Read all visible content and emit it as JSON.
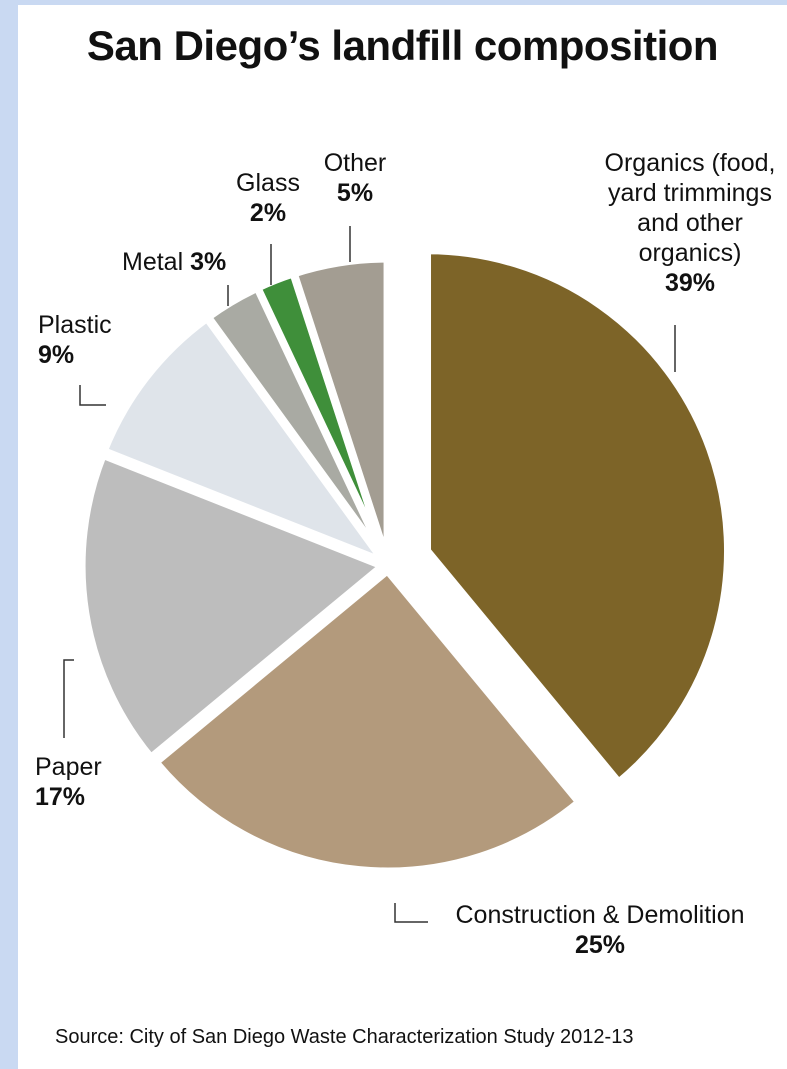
{
  "chart_data": {
    "type": "pie",
    "title": "San Diego’s landfill composition",
    "categories": [
      "Organics (food, yard trimmings and other organics)",
      "Construction & Demolition",
      "Paper",
      "Plastic",
      "Metal",
      "Glass",
      "Other"
    ],
    "values": [
      39,
      25,
      17,
      9,
      3,
      2,
      5
    ],
    "value_labels": [
      "39%",
      "25%",
      "17%",
      "9%",
      "3%",
      "2%",
      "5%"
    ],
    "colors": [
      "#7d6428",
      "#b39a7c",
      "#bdbdbd",
      "#dfe4ea",
      "#a9aaa3",
      "#3f8f3a",
      "#a39d92"
    ],
    "source": "Source: City of San Diego Waste Characterization Study 2012-13"
  }
}
